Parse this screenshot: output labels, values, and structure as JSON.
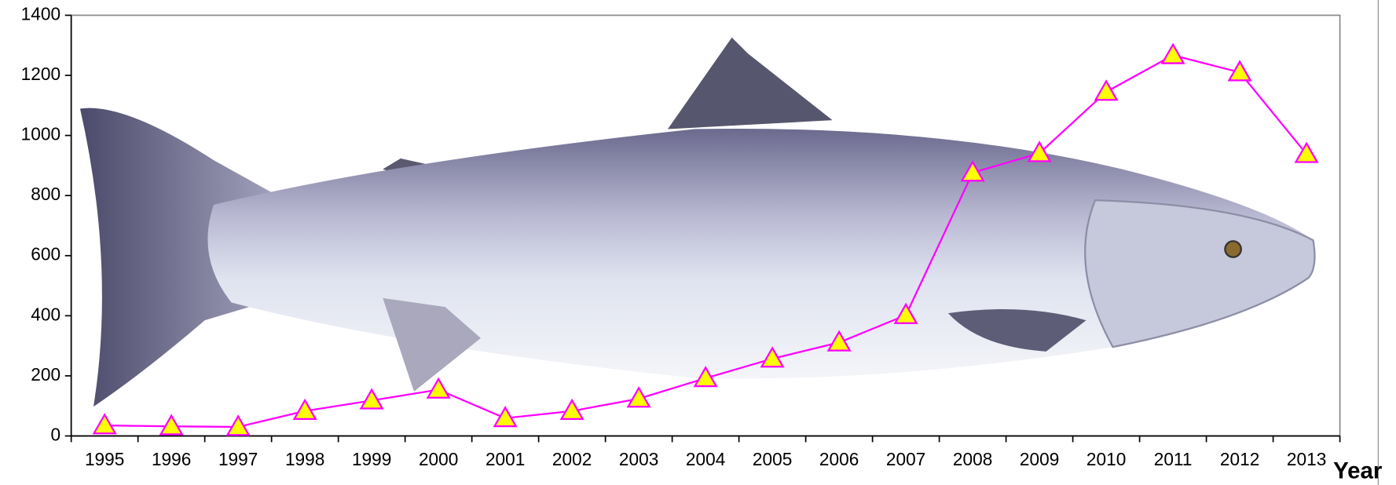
{
  "chart_data": {
    "type": "line",
    "categories": [
      "1995",
      "1996",
      "1997",
      "1998",
      "1999",
      "2000",
      "2001",
      "2002",
      "2003",
      "2004",
      "2005",
      "2006",
      "2007",
      "2008",
      "2009",
      "2010",
      "2011",
      "2012",
      "2013"
    ],
    "series": [
      {
        "color": "#ff00ff",
        "values": [
          35,
          32,
          30,
          83,
          118,
          154,
          59,
          83,
          124,
          192,
          257,
          311,
          402,
          876,
          941,
          1145,
          1267,
          1210,
          938
        ]
      }
    ],
    "x_label": "Year",
    "ylim": [
      0,
      1400
    ],
    "yticks": [
      0,
      200,
      400,
      600,
      800,
      1000,
      1200,
      1400
    ]
  }
}
